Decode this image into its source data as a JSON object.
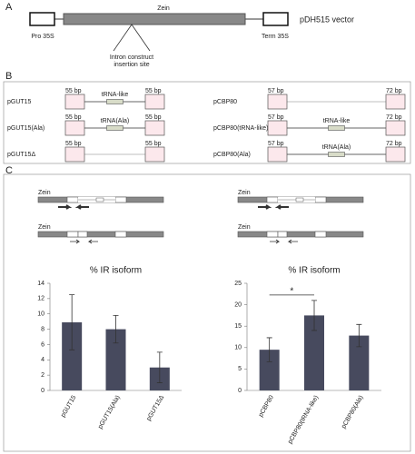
{
  "panels": {
    "a": "A",
    "b": "B",
    "c": "C"
  },
  "vector": {
    "promoter": "Pro 35S",
    "gene": "Zein",
    "terminator": "Term 35S",
    "name": "pDH515 vector",
    "insertion": [
      "Intron construct",
      "insertion site"
    ]
  },
  "constructs": [
    {
      "name": "pGUT15",
      "exon5": "55 bp",
      "intron": "tRNA-like",
      "exon3": "55 bp"
    },
    {
      "name": "pGUT15(Ala)",
      "exon5": "55 bp",
      "intron": "tRNA(Ala)",
      "exon3": "55 bp"
    },
    {
      "name": "pGUT15Δ",
      "exon5": "55 bp",
      "exon3": "55 bp"
    },
    {
      "name": "pCBP80",
      "exon5": "57 bp",
      "exon3": "72 bp"
    },
    {
      "name": "pCBP80(tRNA-like)",
      "exon5": "57 bp",
      "intron": "tRNA-like",
      "exon3": "72 bp"
    },
    {
      "name": "pCBP80(Ala)",
      "exon5": "57 bp",
      "intron": "tRNA(Ala)",
      "exon3": "72 bp"
    }
  ],
  "gene_label": "Zein",
  "chart_data": [
    {
      "type": "bar",
      "title": "% IR isoform",
      "categories": [
        "pGUT15",
        "pGUT15(Ala)",
        "pGUT15Δ"
      ],
      "values": [
        8.9,
        8.0,
        3.0
      ],
      "errors": [
        3.6,
        1.8,
        2.0
      ],
      "color": "#474a5e",
      "ylim": [
        0,
        14
      ],
      "yticks": [
        0,
        2,
        4,
        6,
        8,
        10,
        12,
        14
      ]
    },
    {
      "type": "bar",
      "title": "% IR isoform",
      "categories": [
        "pCBP80",
        "pCBP80(tRNA-like)",
        "pCBP80(Ala)"
      ],
      "values": [
        9.5,
        17.5,
        12.8
      ],
      "errors": [
        2.8,
        3.5,
        2.6
      ],
      "color": "#474a5e",
      "ylim": [
        0,
        25
      ],
      "yticks": [
        0,
        5,
        10,
        15,
        20,
        25
      ],
      "annotation": "*"
    }
  ]
}
